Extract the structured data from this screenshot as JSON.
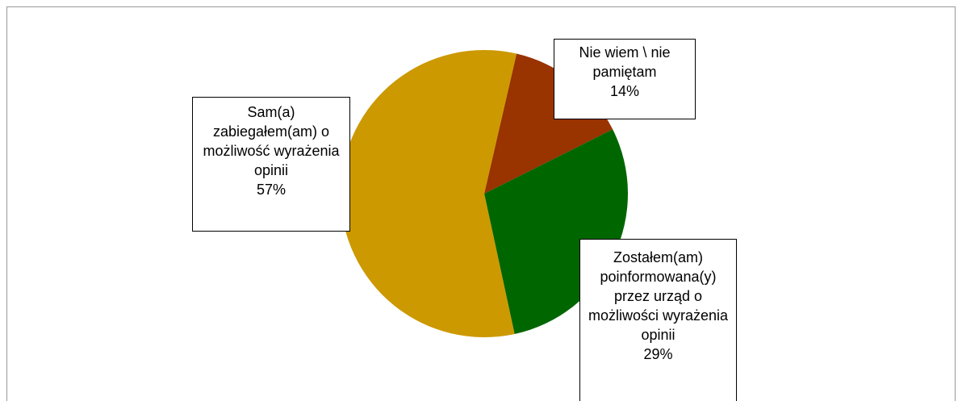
{
  "chart_data": {
    "type": "pie",
    "categories": [
      "Nie wiem \\ nie pamiętam",
      "Zostałem(am) poinformowana(y) przez urząd o możliwości wyrażenia opinii",
      "Sam(a) zabiegałem(am) o możliwość wyrażenia opinii"
    ],
    "values": [
      14,
      29,
      57
    ],
    "value_labels": [
      "14%",
      "29%",
      "57%"
    ],
    "colors": [
      "#993300",
      "#006600",
      "#cc9900"
    ]
  }
}
